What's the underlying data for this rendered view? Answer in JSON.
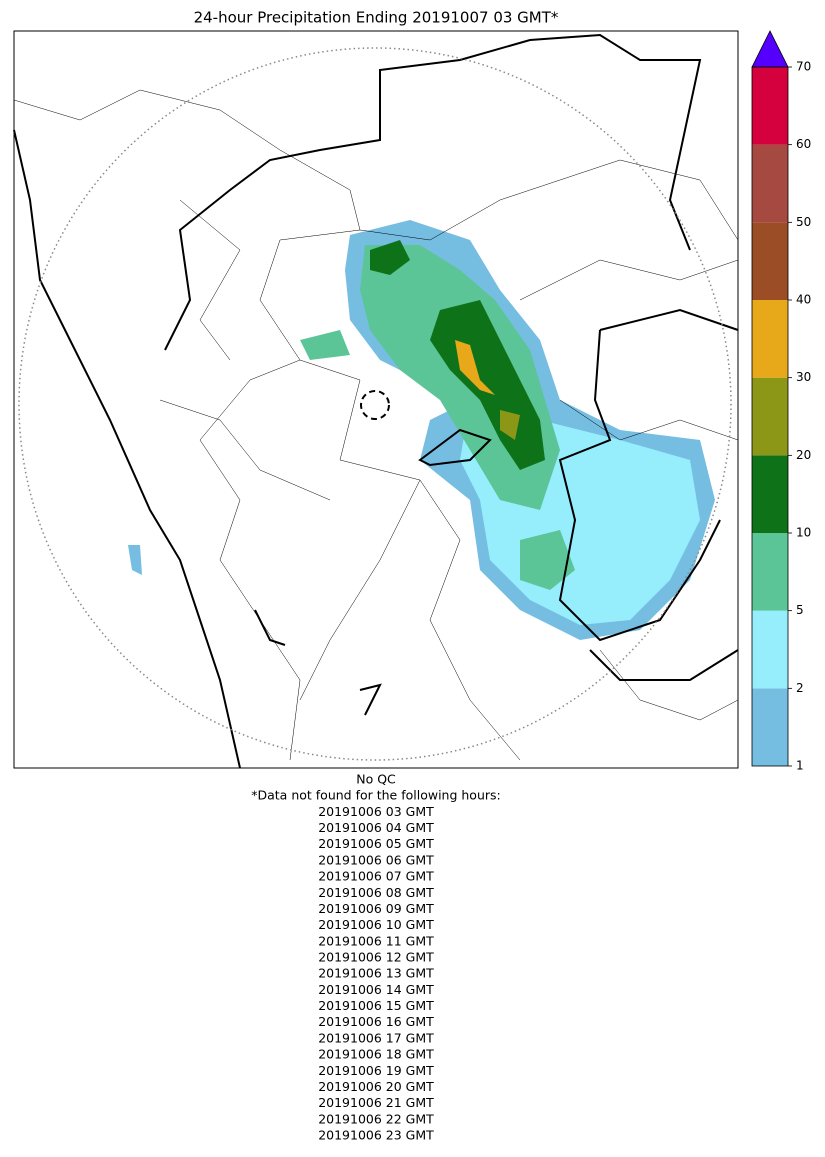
{
  "title": "24-hour Precipitation Ending 20191007 03 GMT*",
  "colorbar": {
    "levels": [
      1,
      2,
      5,
      10,
      20,
      30,
      40,
      50,
      60,
      70
    ],
    "colors": [
      "#76bde2",
      "#96eefd",
      "#5cc597",
      "#0e7219",
      "#8c9718",
      "#e7a91a",
      "#9b4d26",
      "#a64a41",
      "#d5003e"
    ],
    "extend_color": "#5500ff"
  },
  "notes": [
    "No QC",
    "*Data not found for the following hours:"
  ],
  "missing_hours": [
    "20191006 03 GMT",
    "20191006 04 GMT",
    "20191006 05 GMT",
    "20191006 06 GMT",
    "20191006 07 GMT",
    "20191006 08 GMT",
    "20191006 09 GMT",
    "20191006 10 GMT",
    "20191006 11 GMT",
    "20191006 12 GMT",
    "20191006 13 GMT",
    "20191006 14 GMT",
    "20191006 15 GMT",
    "20191006 16 GMT",
    "20191006 17 GMT",
    "20191006 18 GMT",
    "20191006 19 GMT",
    "20191006 20 GMT",
    "20191006 21 GMT",
    "20191006 22 GMT",
    "20191006 23 GMT"
  ]
}
